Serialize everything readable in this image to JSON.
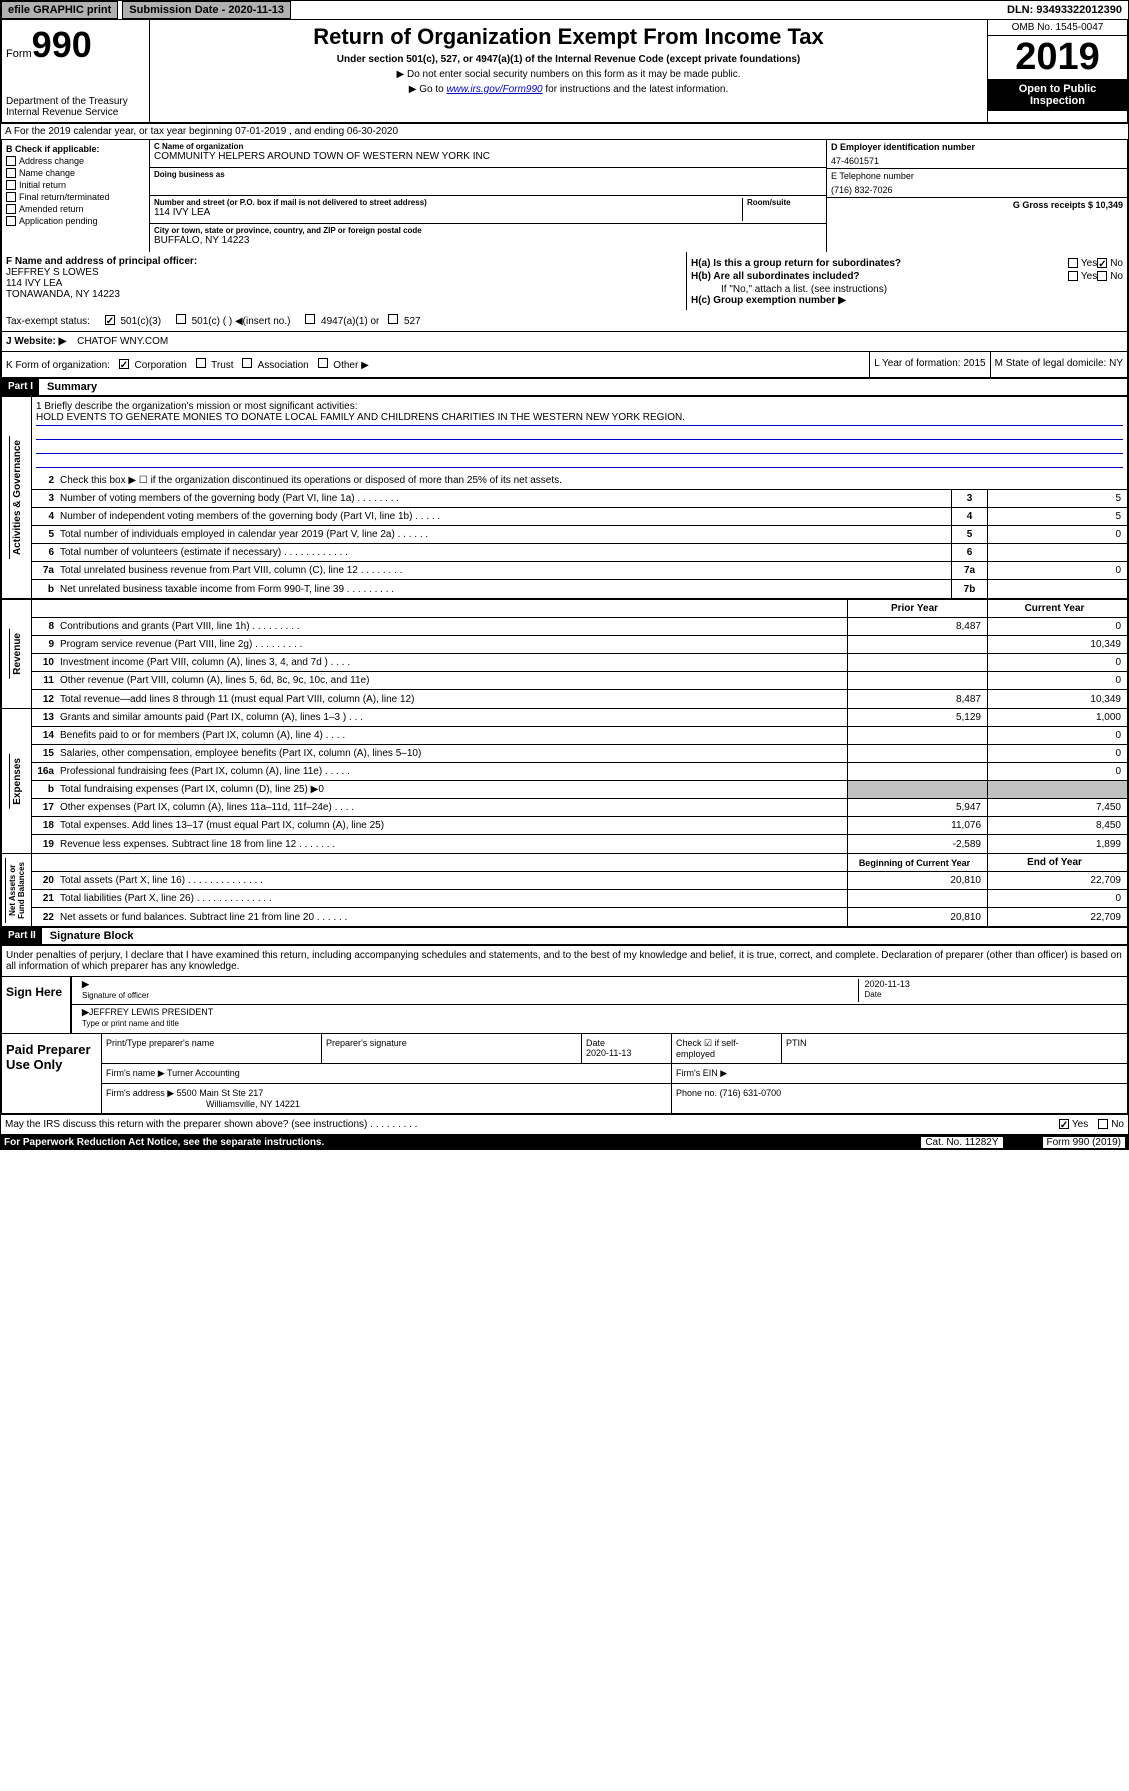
{
  "topbar": {
    "efile": "efile GRAPHIC print",
    "submission": "Submission Date - 2020-11-13",
    "dln": "DLN: 93493322012390"
  },
  "header": {
    "form_prefix": "Form",
    "form_num": "990",
    "dept": "Department of the Treasury\nInternal Revenue Service",
    "title": "Return of Organization Exempt From Income Tax",
    "subtitle": "Under section 501(c), 527, or 4947(a)(1) of the Internal Revenue Code (except private foundations)",
    "note1": "▶ Do not enter social security numbers on this form as it may be made public.",
    "note2_pre": "▶ Go to ",
    "note2_link": "www.irs.gov/Form990",
    "note2_post": " for instructions and the latest information.",
    "omb": "OMB No. 1545-0047",
    "year": "2019",
    "open": "Open to Public Inspection"
  },
  "row_a": "A For the 2019 calendar year, or tax year beginning 07-01-2019    , and ending 06-30-2020",
  "col_b": {
    "label": "B Check if applicable:",
    "items": [
      "Address change",
      "Name change",
      "Initial return",
      "Final return/terminated",
      "Amended return",
      "Application pending"
    ]
  },
  "col_c": {
    "name_label": "C Name of organization",
    "name": "COMMUNITY HELPERS AROUND TOWN OF WESTERN NEW YORK INC",
    "dba_label": "Doing business as",
    "addr_label": "Number and street (or P.O. box if mail is not delivered to street address)",
    "room_label": "Room/suite",
    "addr": "114 IVY LEA",
    "city_label": "City or town, state or province, country, and ZIP or foreign postal code",
    "city": "BUFFALO, NY  14223"
  },
  "col_d": {
    "d_label": "D Employer identification number",
    "d_val": "47-4601571",
    "e_label": "E Telephone number",
    "e_val": "(716) 832-7026",
    "g_label": "G Gross receipts $ 10,349"
  },
  "officer": {
    "f_label": "F  Name and address of principal officer:",
    "name": "JEFFREY S LOWES",
    "addr1": "114 IVY LEA",
    "addr2": "TONAWANDA, NY  14223",
    "ha": "H(a)  Is this a group return for subordinates?",
    "ha_no": "No",
    "hb": "H(b)  Are all subordinates included?",
    "hb_note": "If \"No,\" attach a list. (see instructions)",
    "hc": "H(c)  Group exemption number ▶"
  },
  "tax_status": {
    "label": "Tax-exempt status:",
    "opt1": "501(c)(3)",
    "opt2": "501(c) (  ) ◀(insert no.)",
    "opt3": "4947(a)(1) or",
    "opt4": "527"
  },
  "website": {
    "label": "J   Website: ▶",
    "val": "CHATOF WNY.COM"
  },
  "klm": {
    "k": "K Form of organization:",
    "k_opts": [
      "Corporation",
      "Trust",
      "Association",
      "Other ▶"
    ],
    "l": "L Year of formation: 2015",
    "m": "M State of legal domicile: NY"
  },
  "parts": {
    "p1": "Part I",
    "p1_title": "Summary",
    "p2": "Part II",
    "p2_title": "Signature Block"
  },
  "summary": {
    "line1": "1  Briefly describe the organization's mission or most significant activities:",
    "mission": "HOLD EVENTS TO GENERATE MONIES TO DONATE LOCAL FAMILY AND CHILDRENS CHARITIES IN THE WESTERN NEW YORK REGION.",
    "line2": "Check this box ▶ ☐  if the organization discontinued its operations or disposed of more than 25% of its net assets.",
    "governance_rows": [
      {
        "n": "3",
        "t": "Number of voting members of the governing body (Part VI, line 1a)   .    .    .    .    .    .    .    .",
        "c": "3",
        "v": "5"
      },
      {
        "n": "4",
        "t": "Number of independent voting members of the governing body (Part VI, line 1b)   .    .    .    .    .",
        "c": "4",
        "v": "5"
      },
      {
        "n": "5",
        "t": "Total number of individuals employed in calendar year 2019 (Part V, line 2a)   .    .    .    .    .    .",
        "c": "5",
        "v": "0"
      },
      {
        "n": "6",
        "t": "Total number of volunteers (estimate if necessary)   .    .    .    .    .    .    .    .    .    .    .    .",
        "c": "6",
        "v": ""
      },
      {
        "n": "7a",
        "t": "Total unrelated business revenue from Part VIII, column (C), line 12   .    .    .    .    .    .    .    .",
        "c": "7a",
        "v": "0"
      },
      {
        "n": "b",
        "t": "Net unrelated business taxable income from Form 990-T, line 39   .    .    .    .    .    .    .    .    .",
        "c": "7b",
        "v": ""
      }
    ],
    "col_hdrs": {
      "prior": "Prior Year",
      "current": "Current Year"
    },
    "revenue_rows": [
      {
        "n": "8",
        "t": "Contributions and grants (Part VIII, line 1h)   .    .    .    .    .    .    .    .    .",
        "p": "8,487",
        "c": "0"
      },
      {
        "n": "9",
        "t": "Program service revenue (Part VIII, line 2g)   .    .    .    .    .    .    .    .    .",
        "p": "",
        "c": "10,349"
      },
      {
        "n": "10",
        "t": "Investment income (Part VIII, column (A), lines 3, 4, and 7d )    .    .    .    .",
        "p": "",
        "c": "0"
      },
      {
        "n": "11",
        "t": "Other revenue (Part VIII, column (A), lines 5, 6d, 8c, 9c, 10c, and 11e)",
        "p": "",
        "c": "0"
      },
      {
        "n": "12",
        "t": "Total revenue—add lines 8 through 11 (must equal Part VIII, column (A), line 12)",
        "p": "8,487",
        "c": "10,349"
      }
    ],
    "expense_rows": [
      {
        "n": "13",
        "t": "Grants and similar amounts paid (Part IX, column (A), lines 1–3 )    .    .    .",
        "p": "5,129",
        "c": "1,000"
      },
      {
        "n": "14",
        "t": "Benefits paid to or for members (Part IX, column (A), line 4)    .    .    .    .",
        "p": "",
        "c": "0"
      },
      {
        "n": "15",
        "t": "Salaries, other compensation, employee benefits (Part IX, column (A), lines 5–10)",
        "p": "",
        "c": "0"
      },
      {
        "n": "16a",
        "t": "Professional fundraising fees (Part IX, column (A), line 11e)   .    .    .    .    .",
        "p": "",
        "c": "0"
      },
      {
        "n": "b",
        "t": "Total fundraising expenses (Part IX, column (D), line 25) ▶0",
        "p": "gray",
        "c": "gray"
      },
      {
        "n": "17",
        "t": "Other expenses (Part IX, column (A), lines 11a–11d, 11f–24e)   .    .    .    .",
        "p": "5,947",
        "c": "7,450"
      },
      {
        "n": "18",
        "t": "Total expenses. Add lines 13–17 (must equal Part IX, column (A), line 25)",
        "p": "11,076",
        "c": "8,450"
      },
      {
        "n": "19",
        "t": "Revenue less expenses. Subtract line 18 from line 12   .    .    .    .    .    .    .",
        "p": "-2,589",
        "c": "1,899"
      }
    ],
    "na_hdrs": {
      "beg": "Beginning of Current Year",
      "end": "End of Year"
    },
    "netassets_rows": [
      {
        "n": "20",
        "t": "Total assets (Part X, line 16)   .    .    .    .    .    .    .    .    .    .    .    .    .    .",
        "p": "20,810",
        "c": "22,709"
      },
      {
        "n": "21",
        "t": "Total liabilities (Part X, line 26)   .    .    .    .    .    .    .    .    .    .    .    .    .    .",
        "p": "",
        "c": "0"
      },
      {
        "n": "22",
        "t": "Net assets or fund balances. Subtract line 21 from line 20   .    .    .    .    .    .",
        "p": "20,810",
        "c": "22,709"
      }
    ]
  },
  "vert_labels": {
    "gov": "Activities & Governance",
    "rev": "Revenue",
    "exp": "Expenses",
    "na": "Net Assets or\nFund Balances"
  },
  "perjury": "Under penalties of perjury, I declare that I have examined this return, including accompanying schedules and statements, and to the best of my knowledge and belief, it is true, correct, and complete. Declaration of preparer (other than officer) is based on all information of which preparer has any knowledge.",
  "sign": {
    "here": "Sign Here",
    "sig_label": "Signature of officer",
    "date": "2020-11-13",
    "date_label": "Date",
    "name": "JEFFREY LEWIS  PRESIDENT",
    "name_label": "Type or print name and title"
  },
  "paid": {
    "label": "Paid Preparer Use Only",
    "prep_name_label": "Print/Type preparer's name",
    "prep_sig_label": "Preparer's signature",
    "date_label": "Date",
    "date": "2020-11-13",
    "check_label": "Check ☑ if self-employed",
    "ptin_label": "PTIN",
    "firm_name_label": "Firm's name    ▶",
    "firm_name": "Turner Accounting",
    "firm_ein_label": "Firm's EIN ▶",
    "firm_addr_label": "Firm's address ▶",
    "firm_addr": "5500 Main St Ste 217",
    "firm_city": "Williamsville, NY  14221",
    "phone_label": "Phone no.",
    "phone": "(716) 631-0700"
  },
  "footer": {
    "discuss": "May the IRS discuss this return with the preparer shown above? (see instructions)    .    .    .    .    .    .    .    .    .",
    "yes": "Yes",
    "no": "No",
    "paperwork": "For Paperwork Reduction Act Notice, see the separate instructions.",
    "cat": "Cat. No. 11282Y",
    "form": "Form 990 (2019)"
  }
}
